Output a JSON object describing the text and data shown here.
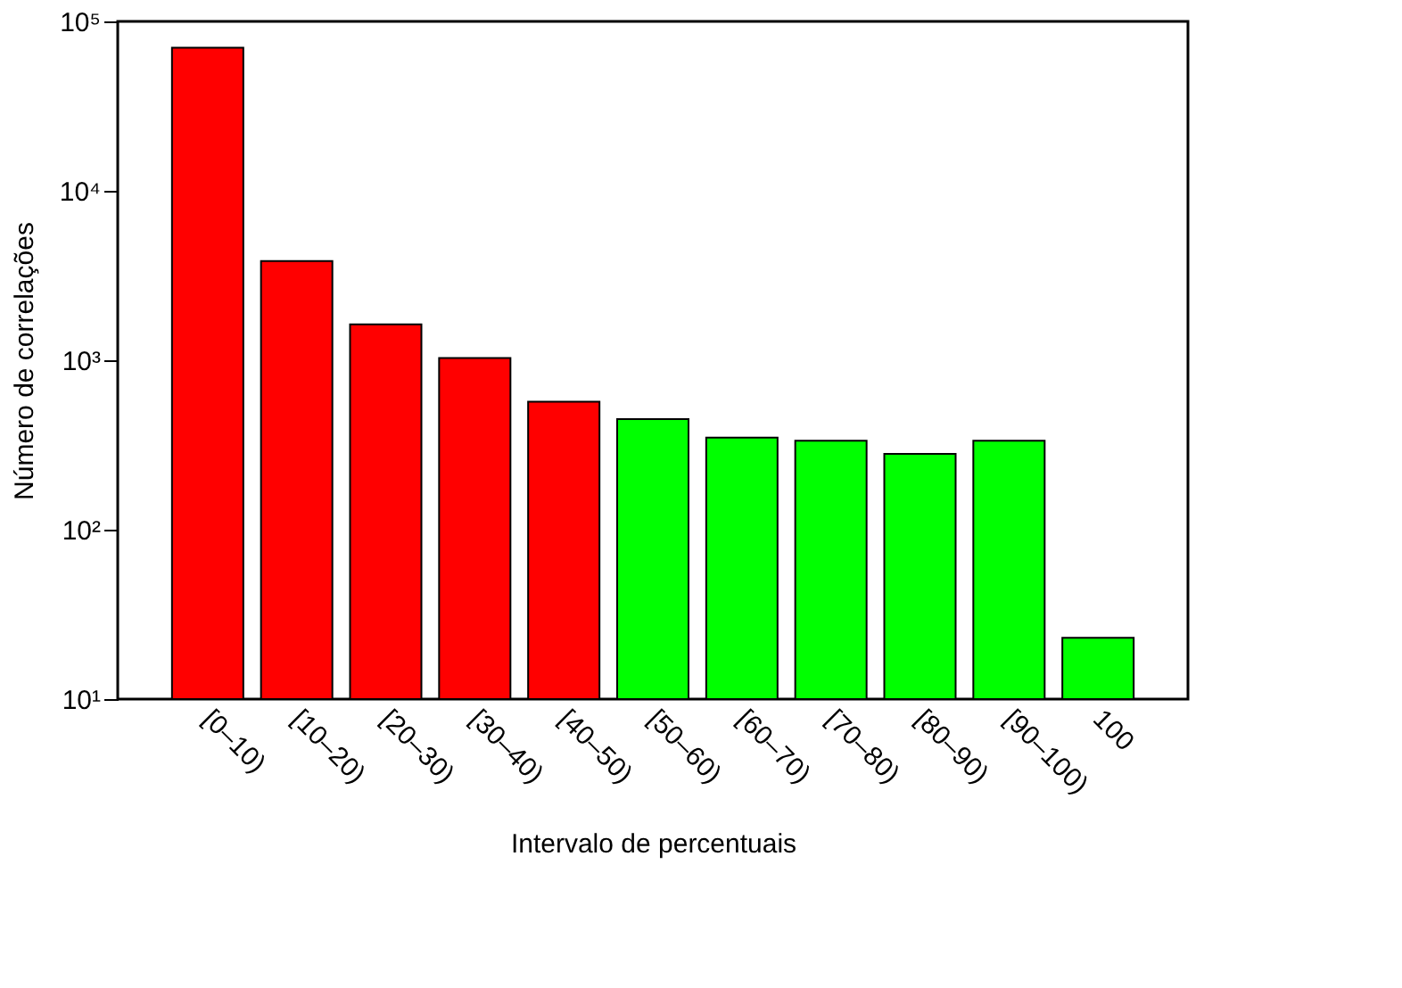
{
  "chart_data": {
    "type": "bar",
    "xlabel": "Intervalo de percentuais",
    "ylabel": "Número de correlações",
    "categories": [
      "[0–10)",
      "[10–20)",
      "[20–30)",
      "[30–40)",
      "[40–50)",
      "[50–60)",
      "[60–70)",
      "[70–80)",
      "[80–90)",
      "[90–100)",
      "100"
    ],
    "values": [
      70000,
      3850,
      1630,
      1030,
      570,
      450,
      350,
      335,
      280,
      335,
      23
    ],
    "colors": [
      "#ff0000",
      "#ff0000",
      "#ff0000",
      "#ff0000",
      "#ff0000",
      "#00ff00",
      "#00ff00",
      "#00ff00",
      "#00ff00",
      "#00ff00",
      "#00ff00"
    ],
    "log": "y",
    "ylim": [
      10,
      100000
    ],
    "yticks": [
      {
        "value": 10,
        "label": "10¹"
      },
      {
        "value": 100,
        "label": "10²"
      },
      {
        "value": 1000,
        "label": "10³"
      },
      {
        "value": 10000,
        "label": "10⁴"
      },
      {
        "value": 100000,
        "label": "10⁵"
      }
    ],
    "grid": false
  }
}
